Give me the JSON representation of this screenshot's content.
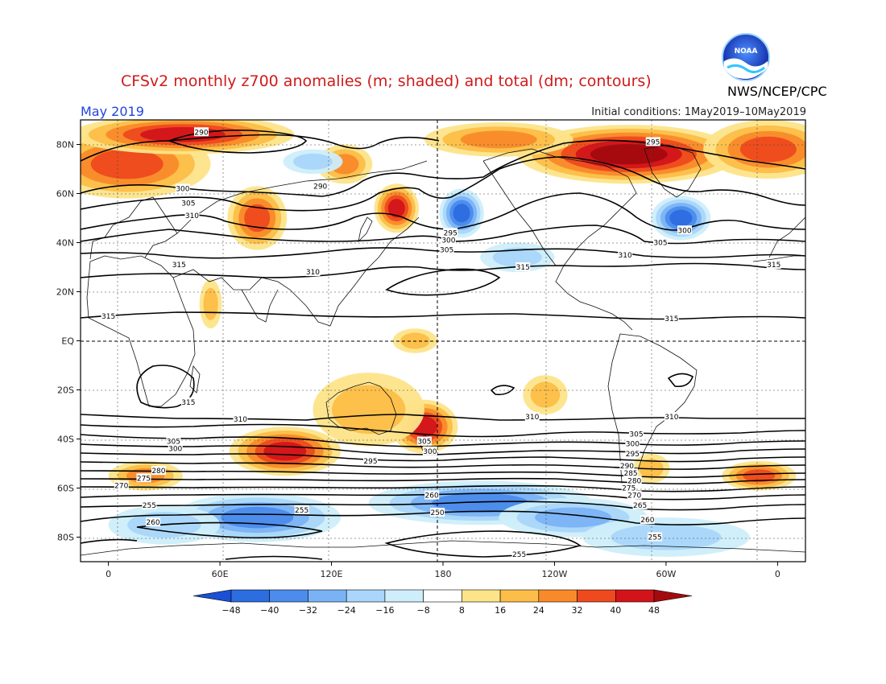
{
  "header": {
    "title": "CFSv2 monthly z700 anomalies (m; shaded) and total (dm; contours)",
    "agency": "NWS/NCEP/CPC",
    "month": "May 2019",
    "initial_conditions": "Initial conditions: 1May2019–10May2019"
  },
  "logo": {
    "text": "NOAA",
    "icon": "noaa-logo"
  },
  "map": {
    "lat_labels": [
      "80N",
      "60N",
      "40N",
      "20N",
      "EQ",
      "20S",
      "40S",
      "60S",
      "80S"
    ],
    "lat_values": [
      80,
      60,
      40,
      20,
      0,
      -20,
      -40,
      -60,
      -80
    ],
    "lon_labels": [
      "0",
      "60E",
      "120E",
      "180",
      "120W",
      "60W",
      "0"
    ],
    "lon_values": [
      0,
      60,
      120,
      180,
      240,
      300,
      360
    ],
    "lon_range": [
      -15,
      375
    ],
    "lat_range": [
      -90,
      90
    ],
    "anomaly_blobs": [
      {
        "lon": 10,
        "lat": 72,
        "rx": 45,
        "ry": 14,
        "value": 32
      },
      {
        "lon": 40,
        "lat": 84,
        "rx": 60,
        "ry": 8,
        "value": 40
      },
      {
        "lon": 80,
        "lat": 50,
        "rx": 16,
        "ry": 13,
        "value": 32
      },
      {
        "lon": 155,
        "lat": 54,
        "rx": 12,
        "ry": 10,
        "value": 40
      },
      {
        "lon": 127,
        "lat": 72,
        "rx": 15,
        "ry": 8,
        "value": 24
      },
      {
        "lon": 280,
        "lat": 76,
        "rx": 60,
        "ry": 12,
        "value": 48
      },
      {
        "lon": 210,
        "lat": 82,
        "rx": 40,
        "ry": 7,
        "value": 24
      },
      {
        "lon": 355,
        "lat": 78,
        "rx": 35,
        "ry": 12,
        "value": 32
      },
      {
        "lon": 190,
        "lat": 52,
        "rx": 12,
        "ry": 10,
        "value": -40
      },
      {
        "lon": 308,
        "lat": 50,
        "rx": 16,
        "ry": 9,
        "value": -40
      },
      {
        "lon": 110,
        "lat": 73,
        "rx": 16,
        "ry": 5,
        "value": -16
      },
      {
        "lon": 220,
        "lat": 34,
        "rx": 20,
        "ry": 6,
        "value": -16
      },
      {
        "lon": 165,
        "lat": 0,
        "rx": 12,
        "ry": 5,
        "value": 16
      },
      {
        "lon": 55,
        "lat": 15,
        "rx": 6,
        "ry": 10,
        "value": 16
      },
      {
        "lon": 235,
        "lat": -22,
        "rx": 12,
        "ry": 8,
        "value": 16
      },
      {
        "lon": 95,
        "lat": -45,
        "rx": 30,
        "ry": 10,
        "value": 40
      },
      {
        "lon": 170,
        "lat": -35,
        "rx": 18,
        "ry": 11,
        "value": 40
      },
      {
        "lon": 140,
        "lat": -28,
        "rx": 30,
        "ry": 15,
        "value": 16
      },
      {
        "lon": 20,
        "lat": -55,
        "rx": 20,
        "ry": 6,
        "value": 24
      },
      {
        "lon": 350,
        "lat": -55,
        "rx": 20,
        "ry": 6,
        "value": 32
      },
      {
        "lon": 292,
        "lat": -52,
        "rx": 10,
        "ry": 6,
        "value": 16
      },
      {
        "lon": 80,
        "lat": -72,
        "rx": 45,
        "ry": 10,
        "value": -32
      },
      {
        "lon": 200,
        "lat": -66,
        "rx": 60,
        "ry": 9,
        "value": -32
      },
      {
        "lon": 250,
        "lat": -72,
        "rx": 40,
        "ry": 8,
        "value": -24
      },
      {
        "lon": 30,
        "lat": -75,
        "rx": 30,
        "ry": 8,
        "value": -16
      },
      {
        "lon": 300,
        "lat": -80,
        "rx": 45,
        "ry": 8,
        "value": -16
      }
    ],
    "contour_labels": [
      {
        "text": "290",
        "lon": 50,
        "lat": 85
      },
      {
        "text": "300",
        "lon": 40,
        "lat": 62
      },
      {
        "text": "305",
        "lon": 43,
        "lat": 56
      },
      {
        "text": "310",
        "lon": 45,
        "lat": 51
      },
      {
        "text": "290",
        "lon": 114,
        "lat": 63
      },
      {
        "text": "295",
        "lon": 184,
        "lat": 44
      },
      {
        "text": "300",
        "lon": 183,
        "lat": 41
      },
      {
        "text": "305",
        "lon": 182,
        "lat": 37
      },
      {
        "text": "310",
        "lon": 110,
        "lat": 28
      },
      {
        "text": "315",
        "lon": 223,
        "lat": 30
      },
      {
        "text": "315",
        "lon": 38,
        "lat": 31
      },
      {
        "text": "315",
        "lon": 0,
        "lat": 10
      },
      {
        "text": "295",
        "lon": 293,
        "lat": 81
      },
      {
        "text": "300",
        "lon": 310,
        "lat": 45
      },
      {
        "text": "305",
        "lon": 297,
        "lat": 40
      },
      {
        "text": "310",
        "lon": 278,
        "lat": 35
      },
      {
        "text": "315",
        "lon": 303,
        "lat": 9
      },
      {
        "text": "315",
        "lon": 358,
        "lat": 31
      },
      {
        "text": "315",
        "lon": 43,
        "lat": -25
      },
      {
        "text": "310",
        "lon": 71,
        "lat": -32
      },
      {
        "text": "310",
        "lon": 228,
        "lat": -31
      },
      {
        "text": "310",
        "lon": 303,
        "lat": -31
      },
      {
        "text": "305",
        "lon": 35,
        "lat": -41
      },
      {
        "text": "300",
        "lon": 36,
        "lat": -44
      },
      {
        "text": "305",
        "lon": 170,
        "lat": -41
      },
      {
        "text": "300",
        "lon": 173,
        "lat": -45
      },
      {
        "text": "305",
        "lon": 284,
        "lat": -38
      },
      {
        "text": "300",
        "lon": 282,
        "lat": -42
      },
      {
        "text": "295",
        "lon": 282,
        "lat": -46
      },
      {
        "text": "290",
        "lon": 279,
        "lat": -51
      },
      {
        "text": "285",
        "lon": 281,
        "lat": -54
      },
      {
        "text": "280",
        "lon": 283,
        "lat": -57
      },
      {
        "text": "275",
        "lon": 280,
        "lat": -60
      },
      {
        "text": "270",
        "lon": 283,
        "lat": -63
      },
      {
        "text": "265",
        "lon": 286,
        "lat": -67
      },
      {
        "text": "260",
        "lon": 290,
        "lat": -73
      },
      {
        "text": "255",
        "lon": 294,
        "lat": -80
      },
      {
        "text": "295",
        "lon": 141,
        "lat": -49
      },
      {
        "text": "275",
        "lon": 19,
        "lat": -56
      },
      {
        "text": "280",
        "lon": 27,
        "lat": -53
      },
      {
        "text": "270",
        "lon": 7,
        "lat": -59
      },
      {
        "text": "260",
        "lon": 174,
        "lat": -63
      },
      {
        "text": "255",
        "lon": 22,
        "lat": -67
      },
      {
        "text": "255",
        "lon": 104,
        "lat": -69
      },
      {
        "text": "250",
        "lon": 177,
        "lat": -70
      },
      {
        "text": "260",
        "lon": 24,
        "lat": -74
      },
      {
        "text": "255",
        "lon": 221,
        "lat": -87
      }
    ]
  },
  "colorbar": {
    "labels": [
      "−48",
      "−40",
      "−32",
      "−24",
      "−16",
      "−8",
      "8",
      "16",
      "24",
      "32",
      "40",
      "48"
    ],
    "colors": [
      "#1a50d6",
      "#2c6de0",
      "#4b8cec",
      "#7ab3f5",
      "#a9d6fa",
      "#cdeefa",
      "#ffffff",
      "#fde48a",
      "#fcbe48",
      "#f98a2a",
      "#ee4a1e",
      "#d2141a",
      "#a30a0e"
    ]
  }
}
